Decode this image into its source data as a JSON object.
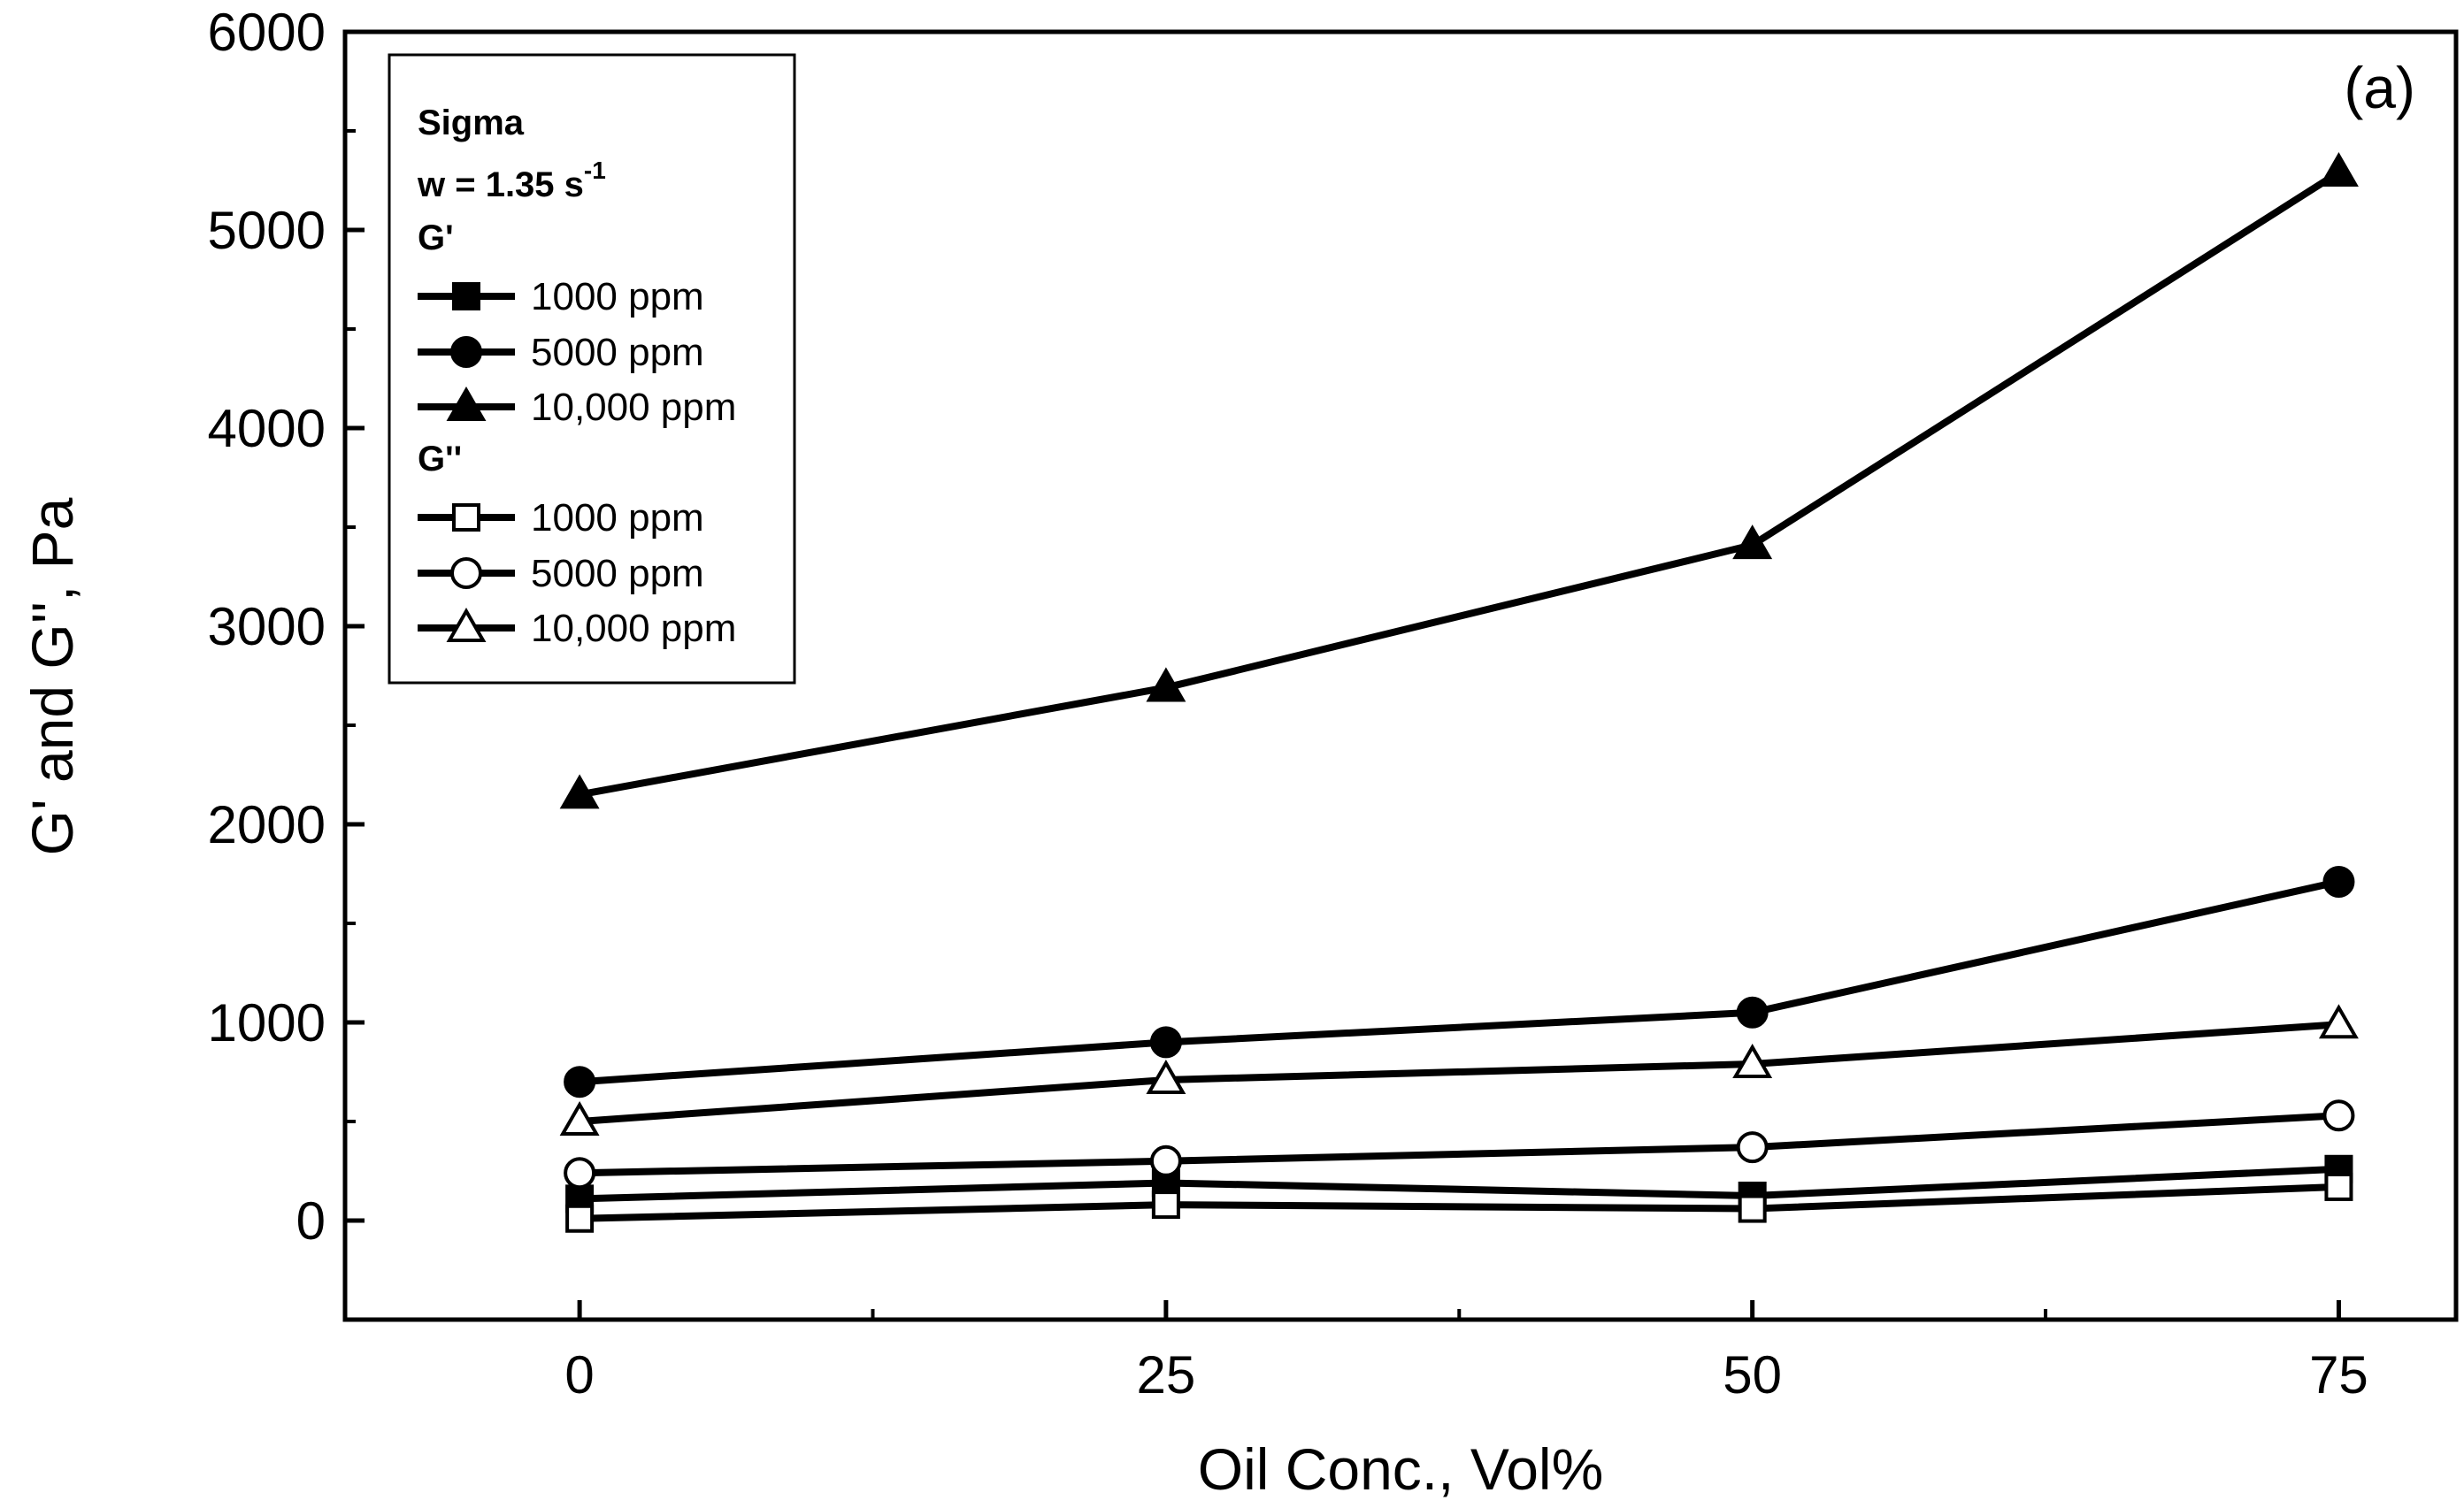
{
  "chart_data": {
    "type": "line",
    "panel_label": "(a)",
    "xlabel": "Oil Conc., Vol%",
    "ylabel": "G' and G'', Pa",
    "x": [
      0,
      25,
      50,
      75
    ],
    "xlim": [
      -10,
      80
    ],
    "ylim": [
      -500,
      6000
    ],
    "xticks": [
      0,
      25,
      50,
      75
    ],
    "xticks_minor": [
      12.5,
      37.5,
      62.5
    ],
    "yticks": [
      0,
      1000,
      2000,
      3000,
      4000,
      5000,
      6000
    ],
    "yticks_minor": [
      500,
      1500,
      2500,
      3500,
      4500,
      5500
    ],
    "legend": {
      "title": "Sigma",
      "subtitle_prefix": "w = 1.35 s",
      "subtitle_sup": "-1",
      "group_g_prime": "G'",
      "group_g_double": "G''",
      "placement": "top-left"
    },
    "series": [
      {
        "name": "1000 ppm",
        "group": "G'",
        "marker": "square",
        "filled": true,
        "values": [
          110,
          190,
          125,
          260
        ]
      },
      {
        "name": "5000 ppm",
        "group": "G'",
        "marker": "circle",
        "filled": true,
        "values": [
          700,
          900,
          1050,
          1710
        ]
      },
      {
        "name": "10,000 ppm",
        "group": "G'",
        "marker": "triangle",
        "filled": true,
        "values": [
          2150,
          2690,
          3410,
          5290
        ]
      },
      {
        "name": "1000 ppm",
        "group": "G''",
        "marker": "square",
        "filled": false,
        "values": [
          10,
          80,
          60,
          170
        ]
      },
      {
        "name": "5000 ppm",
        "group": "G''",
        "marker": "circle",
        "filled": false,
        "values": [
          240,
          300,
          370,
          530
        ]
      },
      {
        "name": "10,000 ppm",
        "group": "G''",
        "marker": "triangle",
        "filled": false,
        "values": [
          500,
          710,
          790,
          990
        ]
      }
    ]
  }
}
